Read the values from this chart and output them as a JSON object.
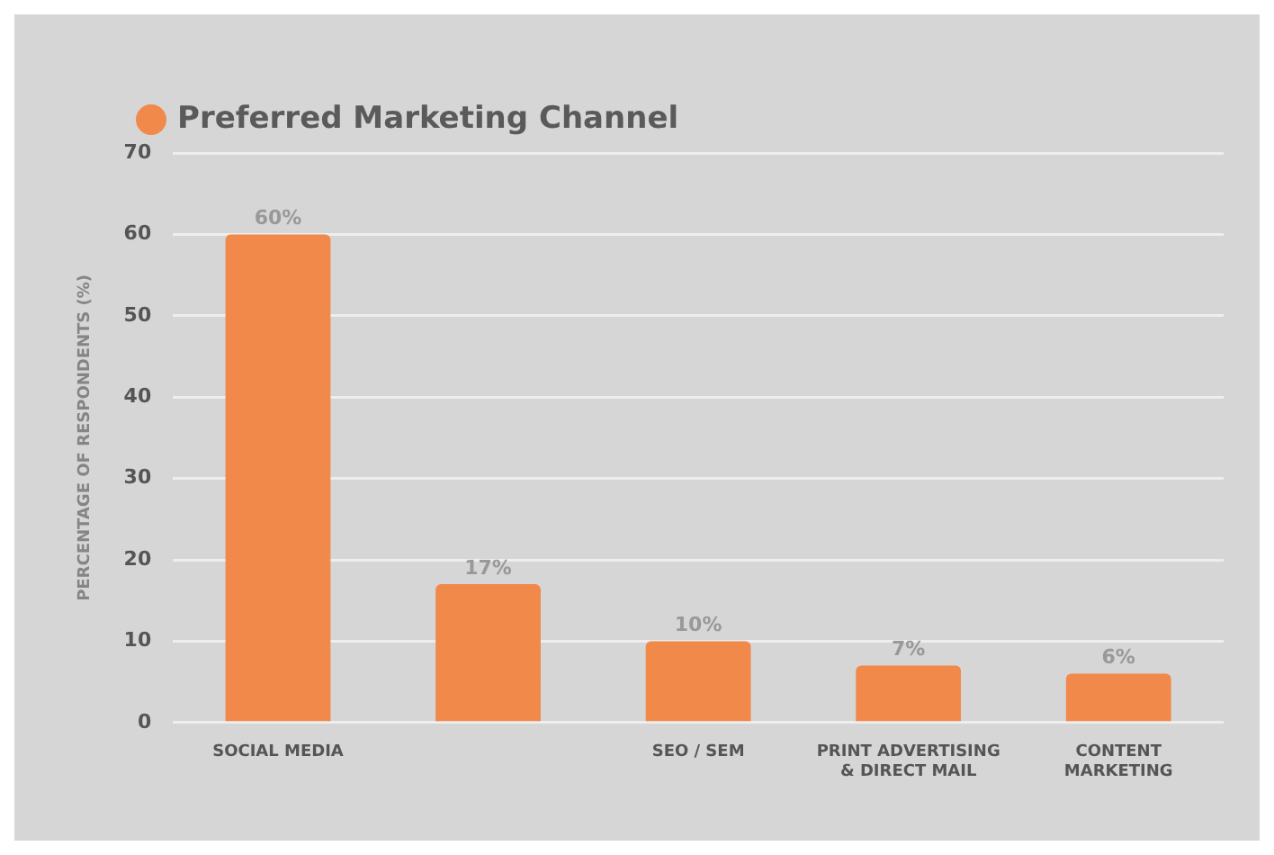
{
  "chart_data": {
    "type": "bar",
    "categories": [
      "SOCIAL MEDIA",
      null,
      "SEO / SEM",
      "PRINT ADVERTISING & DIRECT MAIL",
      "CONTENT MARKETING"
    ],
    "series": [
      {
        "name": "Preferred Marketing Channel",
        "color": "#f0894a",
        "values": [
          60,
          17,
          10,
          7,
          6
        ],
        "value_labels": [
          "60%",
          "17%",
          "10%",
          "7%",
          "6%"
        ]
      }
    ],
    "ylabel": "PERCENTAGE OF RESPONDENTS (%)",
    "ylim": [
      0,
      70
    ],
    "yticks": [
      0,
      10,
      20,
      30,
      40,
      50,
      60,
      70
    ],
    "grid": "y",
    "legend": "top left"
  }
}
